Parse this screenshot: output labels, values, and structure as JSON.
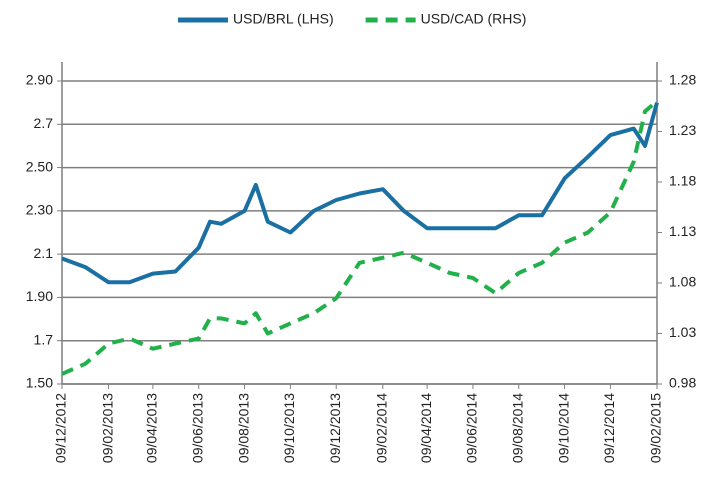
{
  "chart_data": {
    "type": "line",
    "x": [
      "09/12/2012",
      "09/01/2013",
      "09/02/2013",
      "09/03/2013",
      "09/04/2013",
      "09/05/2013",
      "09/06/2013",
      "24/06/2013",
      "09/07/2013",
      "09/08/2013",
      "24/08/2013",
      "09/09/2013",
      "09/10/2013",
      "09/11/2013",
      "09/12/2013",
      "09/01/2014",
      "09/02/2014",
      "09/03/2014",
      "09/04/2014",
      "09/05/2014",
      "09/06/2014",
      "09/07/2014",
      "09/08/2014",
      "09/09/2014",
      "09/10/2014",
      "09/11/2014",
      "09/12/2014",
      "09/01/2015",
      "24/01/2015",
      "09/02/2015"
    ],
    "series": [
      {
        "name": "USD/BRL (LHS)",
        "color": "#1a6fa3",
        "axis": "y",
        "values": [
          2.08,
          2.04,
          1.97,
          1.97,
          2.01,
          2.02,
          2.13,
          2.25,
          2.24,
          2.3,
          2.42,
          2.25,
          2.2,
          2.3,
          2.35,
          2.38,
          2.4,
          2.3,
          2.22,
          2.22,
          2.22,
          2.22,
          2.28,
          2.28,
          2.45,
          2.55,
          2.65,
          2.68,
          2.6,
          2.8
        ]
      },
      {
        "name": "USD/CAD (RHS)",
        "color": "#22b04b",
        "axis": "y2",
        "values": [
          0.99,
          1.0,
          1.02,
          1.025,
          1.015,
          1.02,
          1.025,
          1.045,
          1.045,
          1.04,
          1.05,
          1.03,
          1.04,
          1.05,
          1.065,
          1.1,
          1.105,
          1.11,
          1.1,
          1.09,
          1.085,
          1.07,
          1.09,
          1.1,
          1.12,
          1.13,
          1.15,
          1.2,
          1.25,
          1.26
        ]
      }
    ],
    "xlim": [
      "09/12/2012",
      "09/02/2015"
    ],
    "xticks": [
      "09/12/2012",
      "09/02/2013",
      "09/04/2013",
      "09/06/2013",
      "09/08/2013",
      "09/10/2013",
      "09/12/2013",
      "09/02/2014",
      "09/04/2014",
      "09/06/2014",
      "09/08/2014",
      "09/10/2014",
      "09/12/2014",
      "09/02/2015"
    ],
    "ylim": [
      1.5,
      2.9
    ],
    "yticks": [
      {
        "value": 1.5,
        "label": "1.50"
      },
      1.7,
      {
        "value": 1.9,
        "label": "1.90"
      },
      2.1,
      {
        "value": 2.3,
        "label": "2.30"
      },
      {
        "value": 2.5,
        "label": "2.50"
      },
      2.7,
      {
        "value": 2.9,
        "label": "2.90"
      }
    ],
    "y2lim": [
      0.98,
      1.28
    ],
    "y2ticks": [
      0.98,
      1.03,
      1.08,
      1.13,
      1.18,
      1.23,
      1.28
    ],
    "grid": true,
    "legend": "top"
  }
}
